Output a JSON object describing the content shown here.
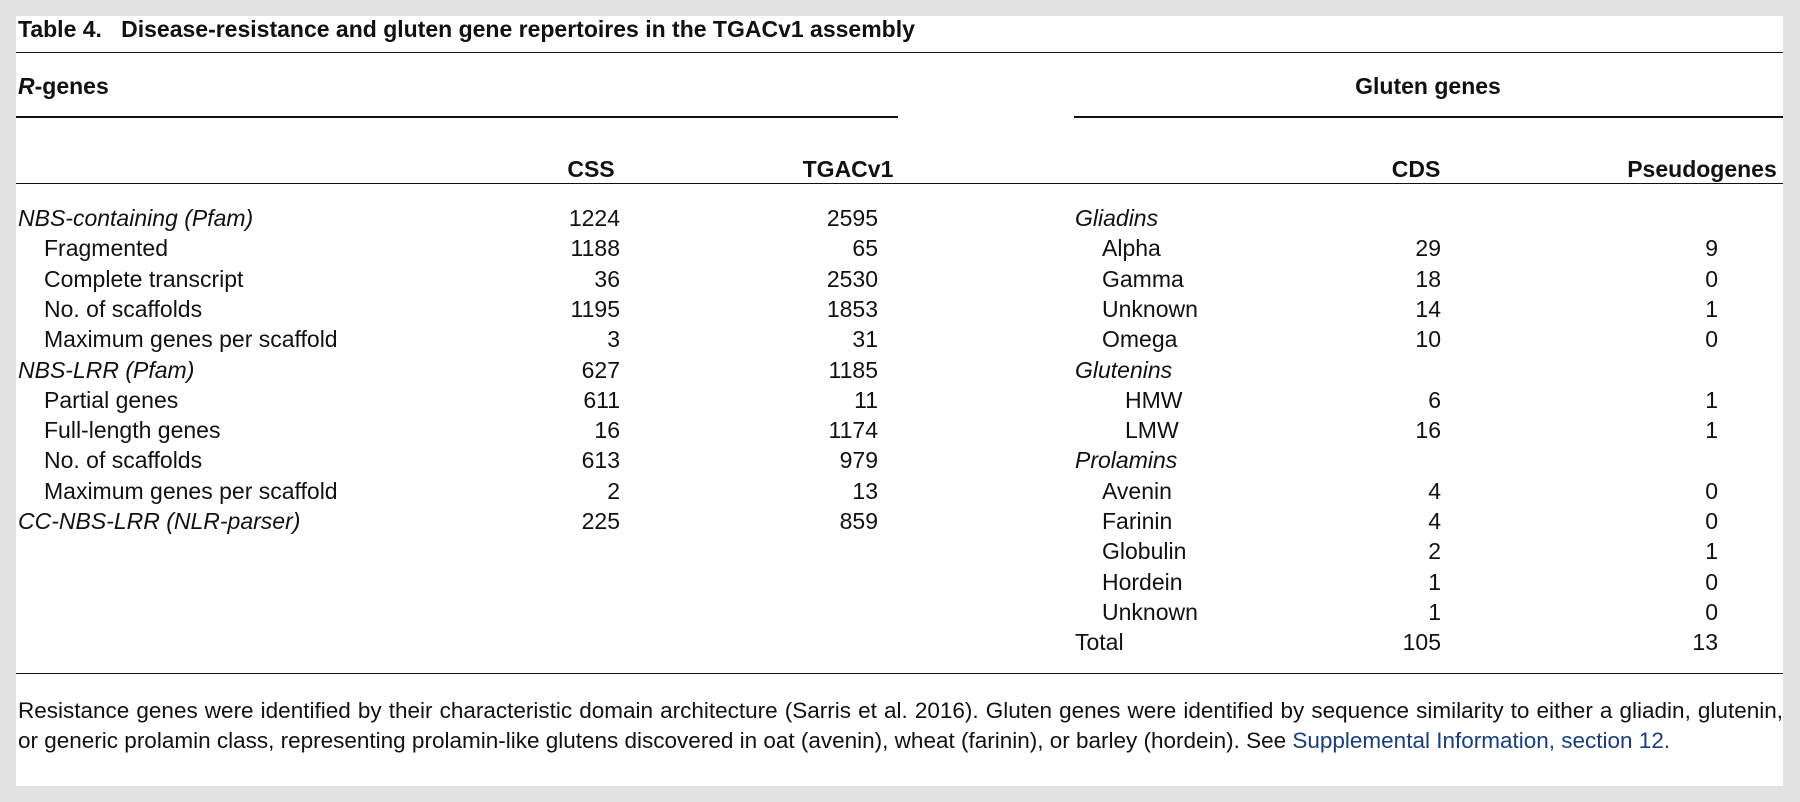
{
  "title": {
    "label": "Table 4.",
    "text": "Disease-resistance and gluten gene repertoires in the TGACv1 assembly"
  },
  "r_genes": {
    "heading": [
      "R",
      "-genes"
    ],
    "columns": [
      "CSS",
      "TGACv1"
    ],
    "groups": [
      {
        "name": "NBS-containing (Pfam)",
        "values": [
          1224,
          2595
        ],
        "items": [
          {
            "label": "Fragmented",
            "values": [
              1188,
              65
            ]
          },
          {
            "label": "Complete transcript",
            "values": [
              36,
              2530
            ]
          },
          {
            "label": "No. of scaffolds",
            "values": [
              1195,
              1853
            ]
          },
          {
            "label": "Maximum genes per scaffold",
            "values": [
              3,
              31
            ]
          }
        ]
      },
      {
        "name": "NBS-LRR (Pfam)",
        "values": [
          627,
          1185
        ],
        "items": [
          {
            "label": "Partial genes",
            "values": [
              611,
              11
            ]
          },
          {
            "label": "Full-length genes",
            "values": [
              16,
              1174
            ]
          },
          {
            "label": "No. of scaffolds",
            "values": [
              613,
              979
            ]
          },
          {
            "label": "Maximum genes per scaffold",
            "values": [
              2,
              13
            ]
          }
        ]
      },
      {
        "name": "CC-NBS-LRR (NLR-parser)",
        "values": [
          225,
          859
        ],
        "items": []
      }
    ]
  },
  "gluten_genes": {
    "heading": "Gluten genes",
    "columns": [
      "CDS",
      "Pseudogenes"
    ],
    "groups": [
      {
        "name": "Gliadins",
        "items": [
          {
            "label": "Alpha",
            "values": [
              29,
              9
            ]
          },
          {
            "label": "Gamma",
            "values": [
              18,
              0
            ]
          },
          {
            "label": "Unknown",
            "values": [
              14,
              1
            ]
          },
          {
            "label": "Omega",
            "values": [
              10,
              0
            ]
          }
        ]
      },
      {
        "name": "Glutenins",
        "items": [
          {
            "label": "HMW",
            "values": [
              6,
              1
            ]
          },
          {
            "label": "LMW",
            "values": [
              16,
              1
            ]
          }
        ]
      },
      {
        "name": "Prolamins",
        "items": [
          {
            "label": "Avenin",
            "values": [
              4,
              0
            ]
          },
          {
            "label": "Farinin",
            "values": [
              4,
              0
            ]
          },
          {
            "label": "Globulin",
            "values": [
              2,
              1
            ]
          },
          {
            "label": "Hordein",
            "values": [
              1,
              0
            ]
          },
          {
            "label": "Unknown",
            "values": [
              1,
              0
            ]
          }
        ]
      }
    ],
    "total": {
      "label": "Total",
      "values": [
        105,
        13
      ]
    }
  },
  "footnote": {
    "text": "Resistance genes were identified by their characteristic domain architecture (Sarris et al. 2016). Gluten genes were identified by sequence similarity to either a gliadin, glutenin, or generic prolamin class, representing prolamin-like glutens discovered in oat (avenin), wheat (farinin), or barley (hordein). See ",
    "link": "Supplemental Information, section 12."
  }
}
